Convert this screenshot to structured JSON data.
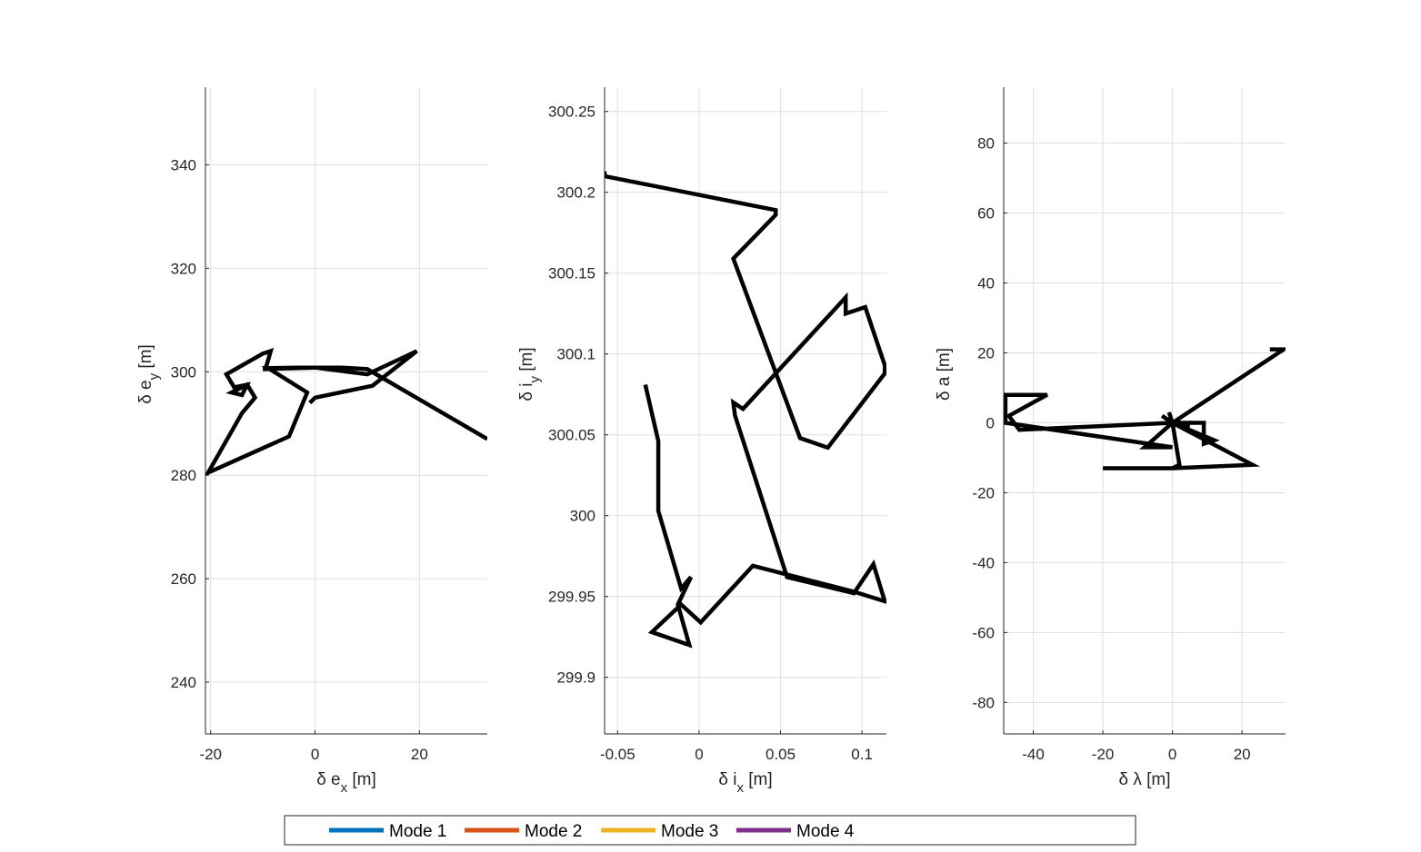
{
  "chart_data": [
    {
      "type": "line",
      "xlabel": {
        "main": "δ e",
        "sub": "x",
        "unit": "[m]"
      },
      "ylabel": {
        "main": "δ e",
        "sub": "y",
        "unit": "[m]"
      },
      "xlim": [
        -21,
        33
      ],
      "ylim": [
        230,
        355
      ],
      "xticks": [
        -20,
        0,
        20
      ],
      "yticks": [
        240,
        260,
        280,
        300,
        320,
        340
      ],
      "grid": true,
      "line_color": "#000000",
      "x": [
        33,
        10,
        5,
        -3,
        -9,
        -1.5,
        -5,
        -20.5,
        -14,
        -11.5,
        -13,
        -16,
        -14,
        -13,
        -15.5,
        -17,
        -13.5,
        -10,
        -8.5,
        -9.5,
        -10,
        0,
        10,
        19.5,
        11,
        0,
        -1
      ],
      "y": [
        287,
        300.5,
        300.8,
        300.8,
        300.7,
        296,
        287.5,
        280.5,
        292,
        295,
        297.5,
        296,
        295.5,
        297.5,
        297,
        299.5,
        301.5,
        303.5,
        304,
        300.5,
        300.5,
        300.8,
        299.5,
        304,
        297.3,
        295,
        294
      ]
    },
    {
      "type": "line",
      "xlabel": {
        "main": "δ i",
        "sub": "x",
        "unit": "[m]"
      },
      "ylabel": {
        "main": "δ i",
        "sub": "y",
        "unit": "[m]"
      },
      "xlim": [
        -0.058,
        0.115
      ],
      "ylim": [
        299.865,
        300.265
      ],
      "xticks": [
        -0.05,
        0,
        0.05,
        0.1
      ],
      "xtick_labels": [
        "-0.05",
        "0",
        "0.05",
        "0.1"
      ],
      "yticks": [
        299.9,
        299.95,
        300,
        300.05,
        300.1,
        300.15,
        300.2,
        300.25
      ],
      "ytick_labels": [
        "299.9",
        "299.95",
        "300",
        "300.05",
        "300.1",
        "300.15",
        "300.2",
        "300.25"
      ],
      "grid": true,
      "line_color": "#000000",
      "x": [
        -0.033,
        -0.025,
        -0.025,
        -0.011,
        -0.005,
        -0.013,
        -0.006,
        -0.029,
        -0.011,
        0.001,
        0.033,
        0.095,
        0.114,
        0.107,
        0.095,
        0.054,
        0.022,
        0.021,
        0.027,
        0.09,
        0.09,
        0.102,
        0.114,
        0.114,
        0.079,
        0.062,
        0.021,
        0.047,
        0.047,
        -0.058,
        -0.058
      ],
      "y": [
        300.081,
        300.046,
        300.003,
        299.955,
        299.962,
        299.945,
        299.92,
        299.928,
        299.945,
        299.934,
        299.969,
        299.953,
        299.947,
        299.97,
        299.952,
        299.962,
        300.062,
        300.07,
        300.066,
        300.135,
        300.125,
        300.129,
        300.093,
        300.088,
        300.042,
        300.048,
        300.159,
        300.186,
        300.189,
        300.21,
        300.213
      ]
    },
    {
      "type": "line",
      "xlabel": {
        "main": "δ λ",
        "sub": "",
        "unit": "[m]"
      },
      "ylabel": {
        "main": "δ a",
        "sub": "",
        "unit": "[m]"
      },
      "xlim": [
        -48.5,
        32.5
      ],
      "ylim": [
        -89,
        96
      ],
      "xticks": [
        -40,
        -20,
        0,
        20
      ],
      "yticks": [
        -80,
        -60,
        -40,
        -20,
        0,
        20,
        40,
        60,
        80
      ],
      "grid": true,
      "line_color": "#000000",
      "x": [
        28,
        32,
        0,
        -1,
        0,
        9,
        9,
        12,
        0,
        -1,
        0,
        23,
        0,
        -20,
        0,
        2,
        0,
        -3,
        0,
        -8,
        0,
        -48,
        -48,
        -36,
        -47,
        -44,
        0,
        2,
        0,
        5,
        0
      ],
      "y": [
        21,
        21,
        0,
        3,
        0,
        0,
        -6,
        -5,
        0,
        1,
        0,
        -12,
        -13,
        -13,
        -13,
        -12,
        0,
        2,
        0,
        -7,
        -7,
        0,
        8,
        8,
        2,
        -2,
        0,
        1,
        0,
        -1,
        0
      ]
    }
  ],
  "legend": {
    "placement": "bottom",
    "entries": [
      {
        "label": "Mode 1",
        "color": "#0072BD"
      },
      {
        "label": "Mode 2",
        "color": "#D95319"
      },
      {
        "label": "Mode 3",
        "color": "#EDB120"
      },
      {
        "label": "Mode 4",
        "color": "#7E2F8E"
      }
    ]
  }
}
